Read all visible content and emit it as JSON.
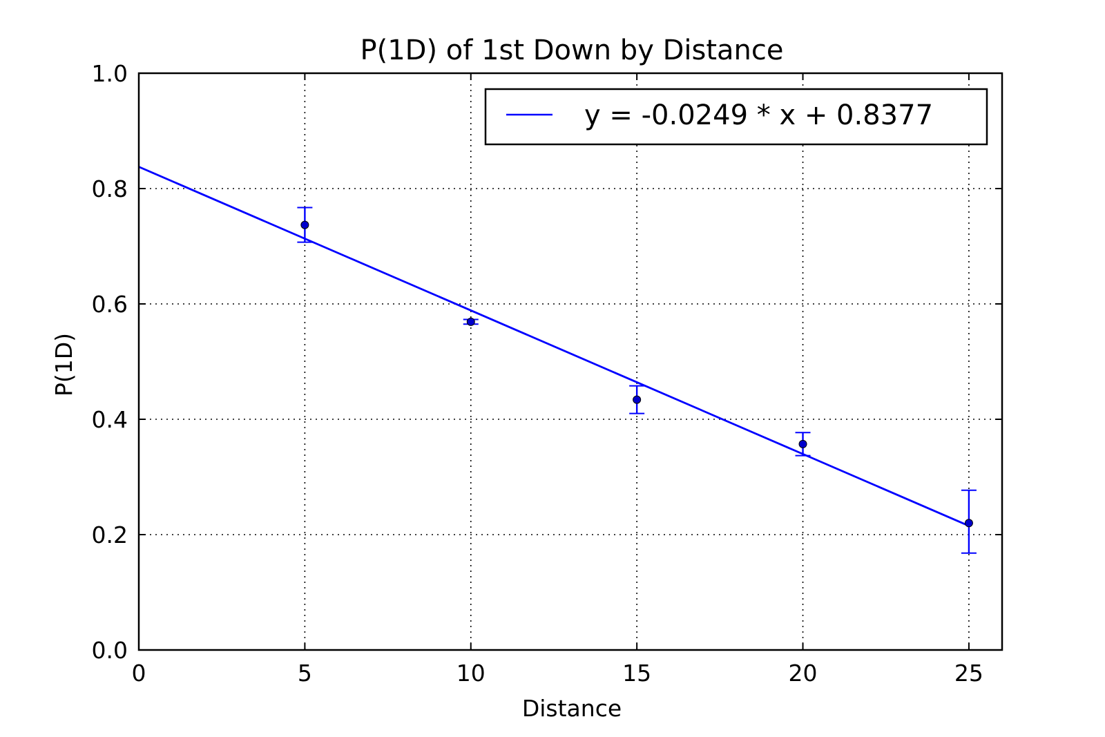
{
  "chart_data": {
    "type": "scatter",
    "title": "P(1D) of 1st Down by Distance",
    "xlabel": "Distance",
    "ylabel": "P(1D)",
    "xlim": [
      0,
      26
    ],
    "ylim": [
      0.0,
      1.0
    ],
    "xticks": [
      0,
      5,
      10,
      15,
      20,
      25
    ],
    "xtick_labels": [
      "0",
      "5",
      "10",
      "15",
      "20",
      "25"
    ],
    "yticks": [
      0.0,
      0.2,
      0.4,
      0.6,
      0.8,
      1.0
    ],
    "ytick_labels": [
      "0.0",
      "0.2",
      "0.4",
      "0.6",
      "0.8",
      "1.0"
    ],
    "grid": true,
    "legend_position": "top-right",
    "colors": {
      "line": "#0000ff",
      "points": "#0000cc",
      "errorbars": "#0000ff"
    },
    "points": [
      {
        "x": 5,
        "y": 0.737,
        "yerr_low": 0.03,
        "yerr_high": 0.03
      },
      {
        "x": 10,
        "y": 0.569,
        "yerr_low": 0.004,
        "yerr_high": 0.004
      },
      {
        "x": 15,
        "y": 0.434,
        "yerr_low": 0.024,
        "yerr_high": 0.024
      },
      {
        "x": 20,
        "y": 0.357,
        "yerr_low": 0.02,
        "yerr_high": 0.02
      },
      {
        "x": 25,
        "y": 0.22,
        "yerr_low": 0.052,
        "yerr_high": 0.057
      }
    ],
    "fit_line": {
      "name": "y = -0.0249 * x + 0.8377",
      "slope": -0.0249,
      "intercept": 0.8377,
      "x_range": [
        0,
        25
      ]
    }
  }
}
